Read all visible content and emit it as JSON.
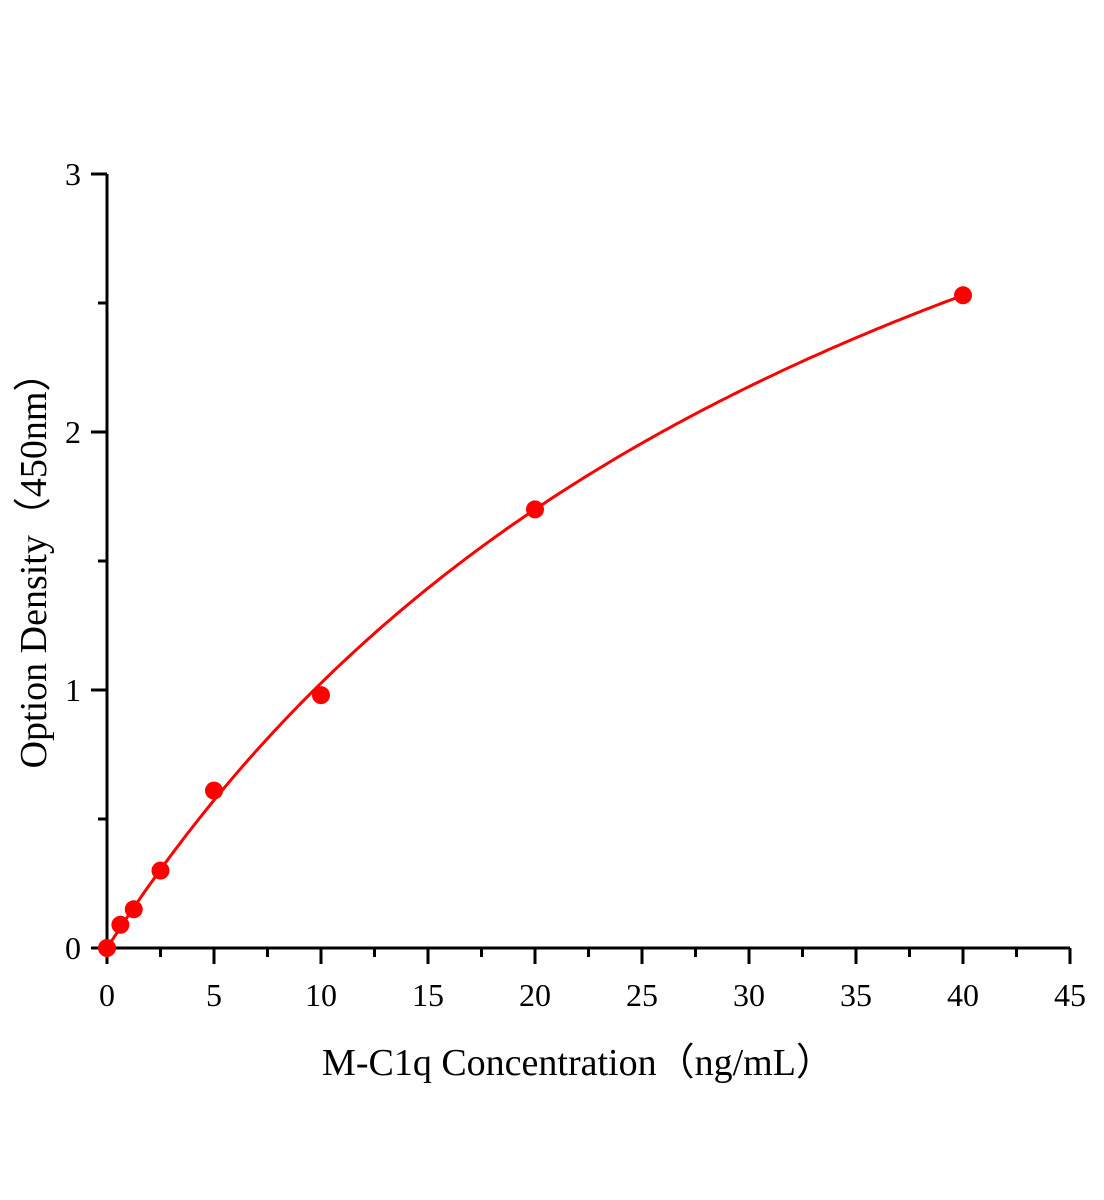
{
  "chart_data": {
    "type": "scatter",
    "title": "",
    "xlabel": "M-C1q Concentration（ng/mL）",
    "ylabel": "Option Density（450nm）",
    "xlim": [
      0,
      45
    ],
    "ylim": [
      0,
      3
    ],
    "xticks": [
      0,
      5,
      10,
      15,
      20,
      25,
      30,
      35,
      40,
      45
    ],
    "yticks": [
      0,
      1,
      2,
      3
    ],
    "x_minor_step": 2.5,
    "y_minor_step": 0.5,
    "grid": false,
    "series": [
      {
        "x": [
          0,
          0.625,
          1.25,
          2.5,
          5,
          10,
          20,
          40
        ],
        "y": [
          0,
          0.09,
          0.15,
          0.3,
          0.61,
          0.98,
          1.7,
          2.53
        ],
        "color": "#ff0000",
        "marker": "circle",
        "fit_line": true
      }
    ]
  }
}
